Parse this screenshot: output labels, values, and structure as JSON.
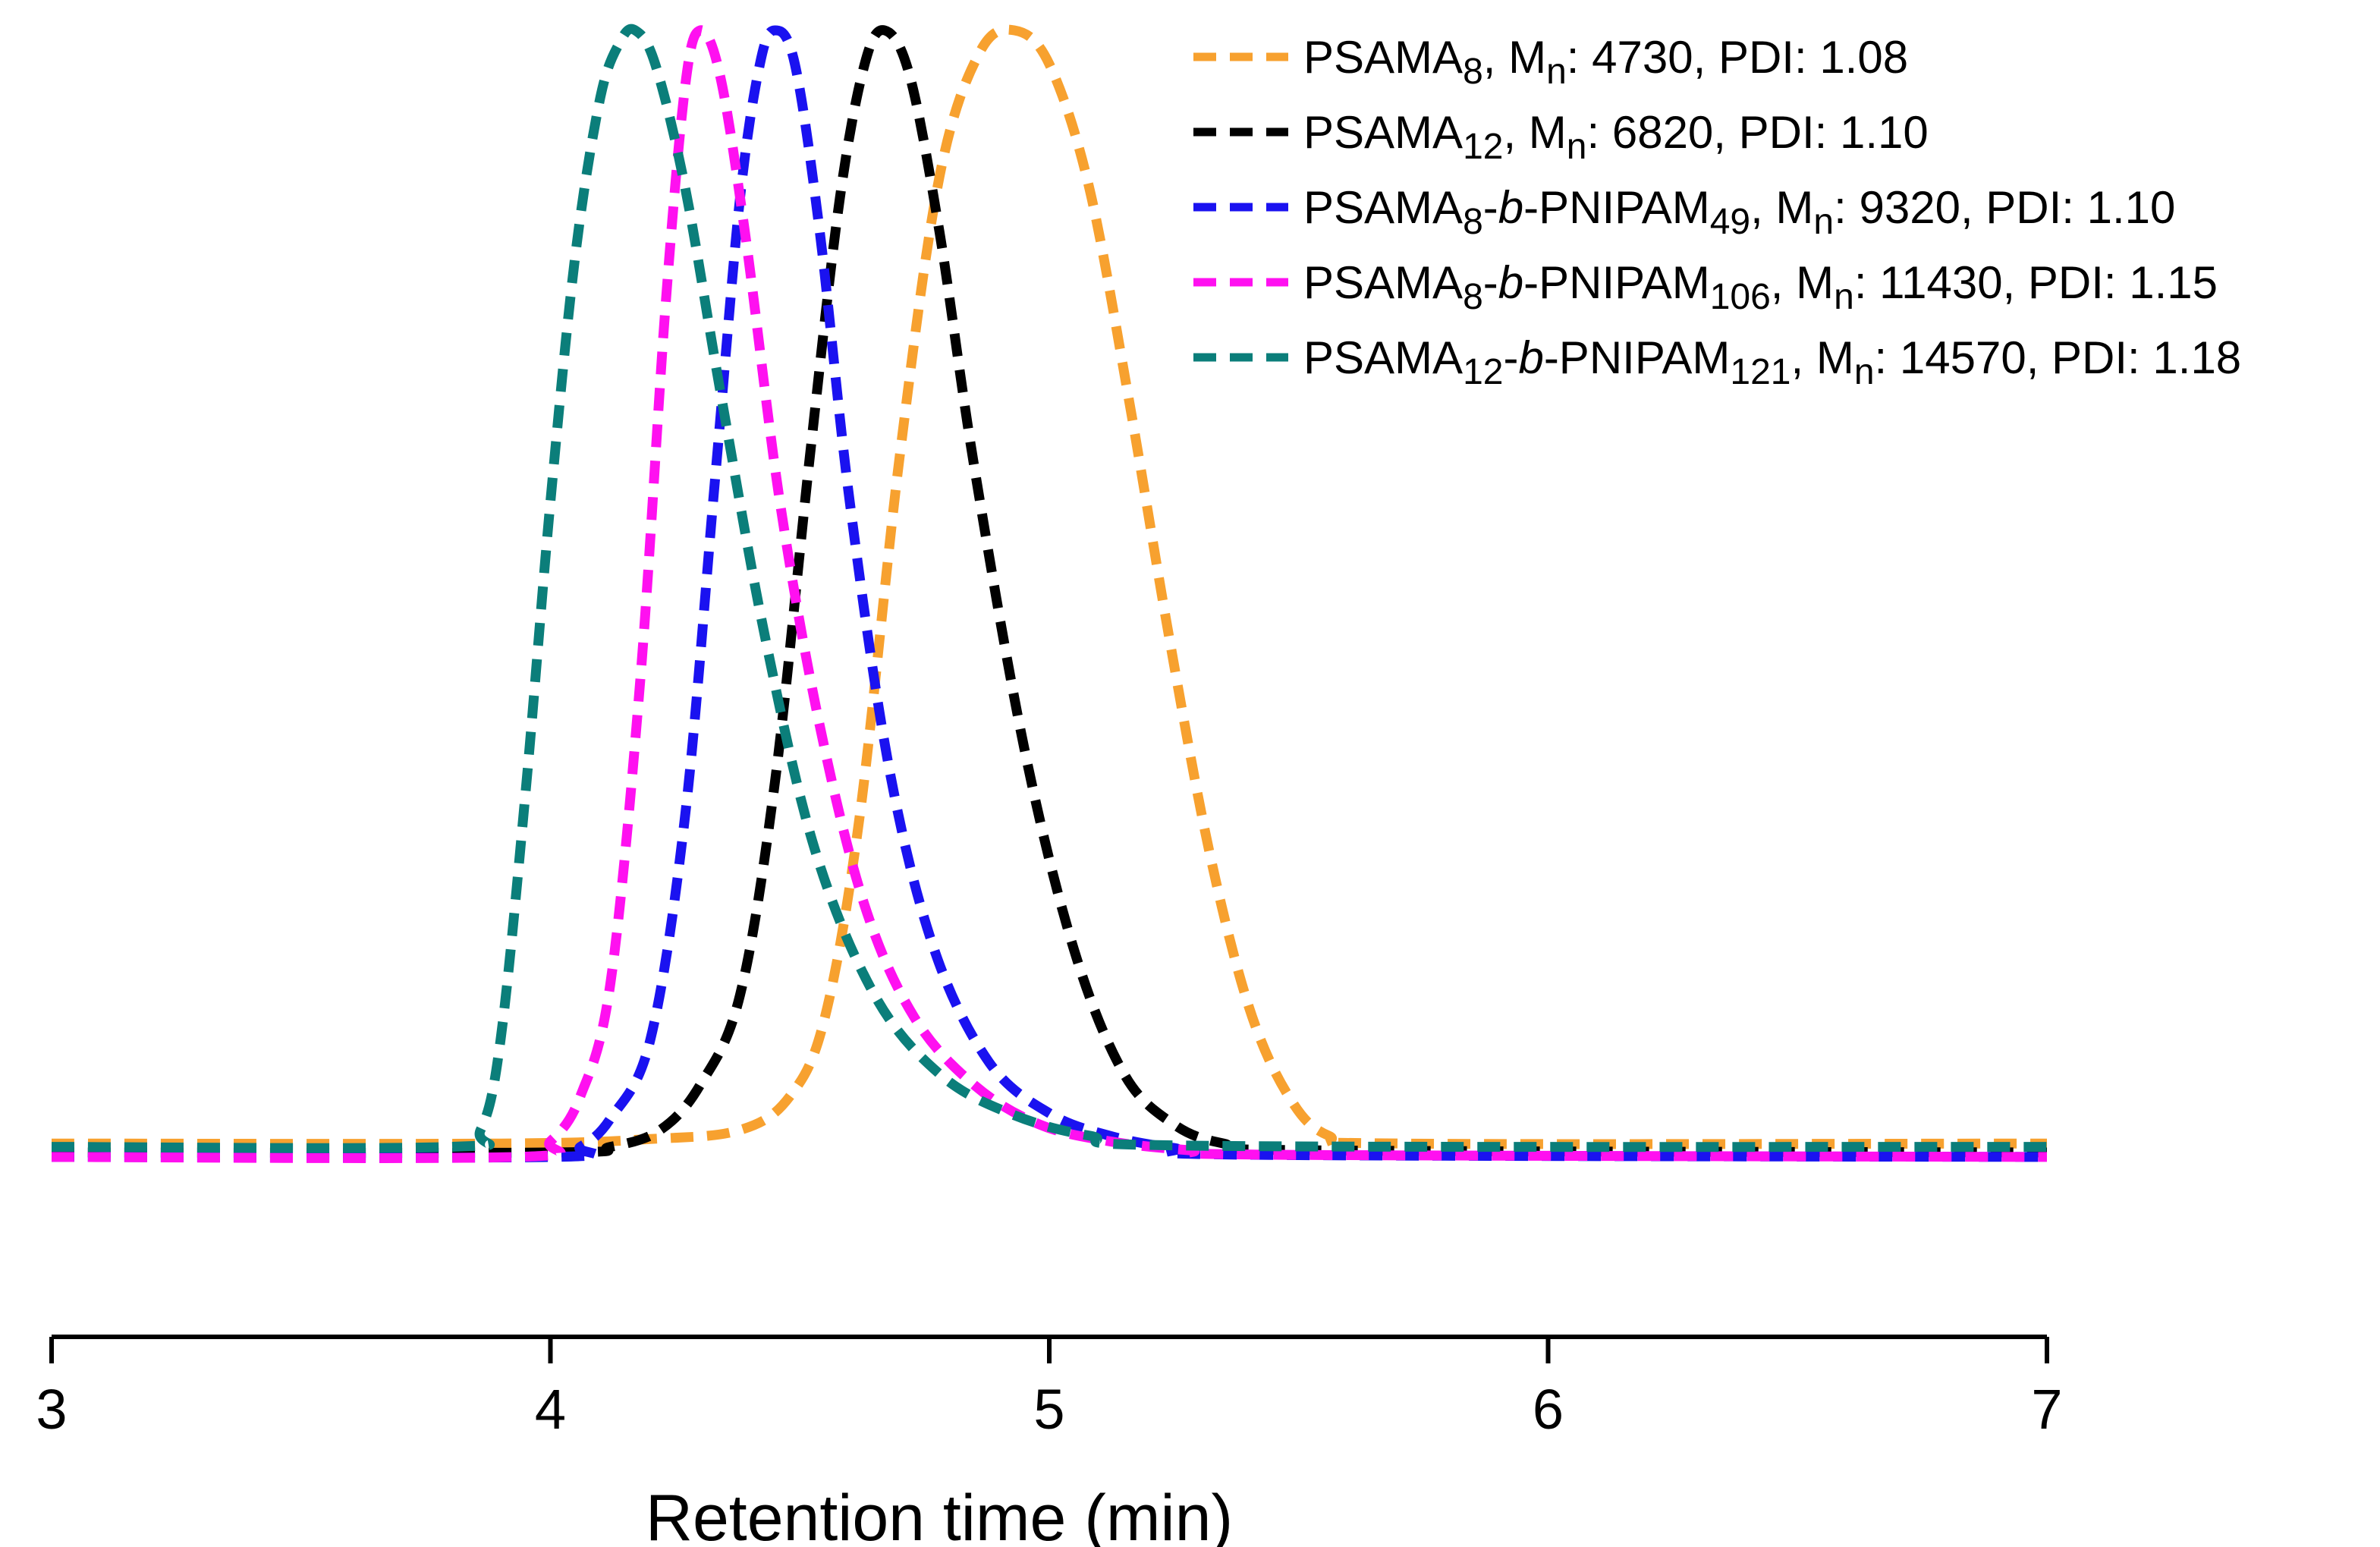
{
  "chart_data": {
    "type": "line",
    "title": "",
    "xlabel": "Retention time (min)",
    "ylabel": "",
    "xlim": [
      3,
      7
    ],
    "ylim": [
      0,
      1.0
    ],
    "xticks": [
      3,
      4,
      5,
      6,
      7
    ],
    "xtick_labels": [
      "3",
      "4",
      "5",
      "6",
      "7"
    ],
    "grid": false,
    "legend_position": "top-right",
    "line_style": "dashed",
    "series": [
      {
        "name": "PSAMA8, Mn: 4730, PDI: 1.08",
        "legend": [
          [
            "PSAMA",
            "n"
          ],
          [
            "8",
            "sub"
          ],
          [
            ", M",
            "n"
          ],
          [
            "n",
            "sub"
          ],
          [
            ": 4730, PDI: 1.08",
            "n"
          ]
        ],
        "color": "#F7A12F",
        "baseline": 0.008,
        "x": [
          3.0,
          3.9,
          4.2,
          4.38,
          4.48,
          4.55,
          4.62,
          4.7,
          4.78,
          4.86,
          4.93,
          5.0,
          5.08,
          5.16,
          5.24,
          5.32,
          5.4,
          5.48,
          5.56,
          5.7,
          7.0
        ],
        "y": [
          0.008,
          0.008,
          0.012,
          0.02,
          0.05,
          0.12,
          0.3,
          0.62,
          0.87,
          0.98,
          1.0,
          0.97,
          0.86,
          0.67,
          0.46,
          0.27,
          0.13,
          0.05,
          0.015,
          0.008,
          0.008
        ]
      },
      {
        "name": "PSAMA12, Mn: 6820, PDI: 1.10",
        "legend": [
          [
            "PSAMA",
            "n"
          ],
          [
            "12",
            "sub"
          ],
          [
            ", M",
            "n"
          ],
          [
            "n",
            "sub"
          ],
          [
            ": 6820, PDI: 1.10",
            "n"
          ]
        ],
        "color": "#000000",
        "baseline": 0.0,
        "x": [
          3.0,
          4.0,
          4.12,
          4.22,
          4.3,
          4.38,
          4.45,
          4.52,
          4.58,
          4.63,
          4.67,
          4.72,
          4.78,
          4.85,
          4.95,
          5.05,
          5.15,
          5.25,
          5.35,
          5.5,
          7.0
        ],
        "y": [
          0.0,
          0.0,
          0.005,
          0.02,
          0.06,
          0.14,
          0.33,
          0.62,
          0.85,
          0.97,
          1.0,
          0.96,
          0.82,
          0.61,
          0.36,
          0.18,
          0.07,
          0.025,
          0.008,
          0.002,
          0.0
        ]
      },
      {
        "name": "PSAMA8-b-PNIPAM49, Mn: 9320, PDI: 1.10",
        "legend": [
          [
            "PSAMA",
            "n"
          ],
          [
            "8",
            "sub"
          ],
          [
            "-",
            "n"
          ],
          [
            "b",
            "i"
          ],
          [
            "-PNIPAM",
            "n"
          ],
          [
            "49",
            "sub"
          ],
          [
            ", M",
            "n"
          ],
          [
            "n",
            "sub"
          ],
          [
            ": 9320, PDI: 1.10",
            "n"
          ]
        ],
        "color": "#1A12F0",
        "baseline": -0.004,
        "x": [
          3.0,
          4.0,
          4.06,
          4.12,
          4.2,
          4.27,
          4.33,
          4.38,
          4.42,
          4.45,
          4.49,
          4.54,
          4.6,
          4.68,
          4.77,
          4.88,
          5.0,
          5.12,
          5.25,
          5.4,
          7.0
        ],
        "y": [
          -0.004,
          -0.004,
          0.005,
          0.03,
          0.1,
          0.3,
          0.6,
          0.85,
          0.97,
          1.0,
          0.97,
          0.82,
          0.58,
          0.34,
          0.18,
          0.08,
          0.035,
          0.015,
          0.004,
          -0.002,
          -0.004
        ]
      },
      {
        "name": "PSAMA8-b-PNIPAM106, Mn: 11430, PDI: 1.15",
        "legend": [
          [
            "PSAMA",
            "n"
          ],
          [
            "8",
            "sub"
          ],
          [
            "-",
            "n"
          ],
          [
            "b",
            "i"
          ],
          [
            "-PNIPAM",
            "n"
          ],
          [
            "106",
            "sub"
          ],
          [
            ", M",
            "n"
          ],
          [
            "n",
            "sub"
          ],
          [
            ": 11430, PDI: 1.15",
            "n"
          ]
        ],
        "color": "#FF10F0",
        "baseline": -0.004,
        "x": [
          3.0,
          3.93,
          4.0,
          4.06,
          4.12,
          4.18,
          4.23,
          4.27,
          4.3,
          4.34,
          4.39,
          4.46,
          4.54,
          4.63,
          4.73,
          4.85,
          4.98,
          5.12,
          5.28,
          5.45,
          7.0
        ],
        "y": [
          -0.004,
          -0.004,
          0.01,
          0.05,
          0.15,
          0.42,
          0.75,
          0.95,
          1.0,
          0.96,
          0.82,
          0.58,
          0.38,
          0.22,
          0.12,
          0.06,
          0.025,
          0.01,
          0.002,
          -0.002,
          -0.004
        ]
      },
      {
        "name": "PSAMA12-b-PNIPAM121, Mn: 14570, PDI: 1.18",
        "legend": [
          [
            "PSAMA",
            "n"
          ],
          [
            "12",
            "sub"
          ],
          [
            "-",
            "n"
          ],
          [
            "b",
            "i"
          ],
          [
            "-PNIPAM",
            "n"
          ],
          [
            "121",
            "sub"
          ],
          [
            ", M",
            "n"
          ],
          [
            "n",
            "sub"
          ],
          [
            ": 14570, PDI: 1.18",
            "n"
          ]
        ],
        "color": "#0B7E7A",
        "baseline": 0.005,
        "x": [
          3.0,
          3.8,
          3.86,
          3.9,
          3.95,
          4.0,
          4.05,
          4.1,
          4.14,
          4.17,
          4.21,
          4.27,
          4.34,
          4.43,
          4.53,
          4.65,
          4.78,
          4.92,
          5.08,
          5.3,
          7.0
        ],
        "y": [
          0.005,
          0.005,
          0.02,
          0.1,
          0.32,
          0.58,
          0.8,
          0.94,
          0.99,
          1.0,
          0.97,
          0.86,
          0.68,
          0.46,
          0.27,
          0.14,
          0.07,
          0.035,
          0.015,
          0.006,
          0.005
        ]
      }
    ]
  }
}
